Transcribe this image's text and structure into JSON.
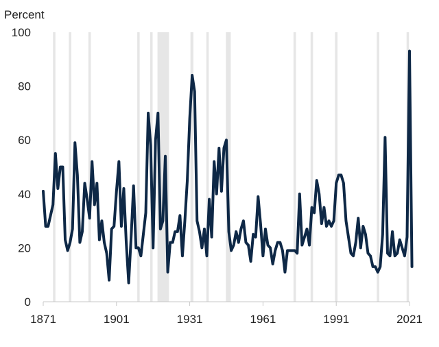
{
  "chart_data": {
    "type": "line",
    "title": "",
    "xlabel": "",
    "ylabel": "Percent",
    "xlim": [
      1871,
      2021
    ],
    "ylim": [
      0,
      100
    ],
    "x_ticks": [
      1871,
      1901,
      1931,
      1961,
      1991,
      2021
    ],
    "y_ticks": [
      0,
      20,
      40,
      60,
      80,
      100
    ],
    "grid": false,
    "legend": "none",
    "shaded_periods": [
      [
        1875.0,
        1876.0
      ],
      [
        1881.5,
        1882.5
      ],
      [
        1889.5,
        1890.5
      ],
      [
        1909.5,
        1910.5
      ],
      [
        1914.8,
        1915.8
      ],
      [
        1917.8,
        1922.5
      ],
      [
        1931.3,
        1932.5
      ],
      [
        1937.8,
        1938.8
      ],
      [
        1945.8,
        1947.8
      ],
      [
        1973.5,
        1974.5
      ],
      [
        1980.5,
        1981.5
      ],
      [
        1990.5,
        1991.5
      ],
      [
        2007.6,
        2008.6
      ],
      [
        2019.8,
        2020.8
      ]
    ],
    "series": [
      {
        "color": "#0e2846",
        "points": [
          [
            1871,
            41
          ],
          [
            1872,
            28
          ],
          [
            1873,
            28
          ],
          [
            1874,
            32
          ],
          [
            1875,
            36
          ],
          [
            1876,
            55
          ],
          [
            1877,
            42
          ],
          [
            1878,
            50
          ],
          [
            1879,
            50
          ],
          [
            1880,
            23
          ],
          [
            1881,
            19
          ],
          [
            1882,
            22
          ],
          [
            1883,
            27
          ],
          [
            1884,
            59
          ],
          [
            1885,
            47
          ],
          [
            1886,
            22
          ],
          [
            1887,
            26
          ],
          [
            1888,
            44
          ],
          [
            1889,
            38
          ],
          [
            1890,
            31
          ],
          [
            1891,
            52
          ],
          [
            1892,
            36
          ],
          [
            1893,
            44
          ],
          [
            1894,
            23
          ],
          [
            1895,
            30
          ],
          [
            1896,
            22
          ],
          [
            1897,
            18
          ],
          [
            1898,
            8
          ],
          [
            1899,
            27
          ],
          [
            1900,
            28
          ],
          [
            1901,
            41
          ],
          [
            1902,
            52
          ],
          [
            1903,
            28
          ],
          [
            1904,
            42
          ],
          [
            1905,
            22
          ],
          [
            1906,
            7
          ],
          [
            1907,
            24
          ],
          [
            1908,
            43
          ],
          [
            1909,
            20
          ],
          [
            1910,
            20
          ],
          [
            1911,
            17
          ],
          [
            1912,
            25
          ],
          [
            1913,
            33
          ],
          [
            1914,
            70
          ],
          [
            1915,
            58
          ],
          [
            1916,
            20
          ],
          [
            1917,
            60
          ],
          [
            1918,
            70
          ],
          [
            1919,
            27
          ],
          [
            1920,
            30
          ],
          [
            1921,
            54
          ],
          [
            1922,
            11
          ],
          [
            1923,
            22
          ],
          [
            1924,
            22
          ],
          [
            1925,
            26
          ],
          [
            1926,
            26
          ],
          [
            1927,
            32
          ],
          [
            1928,
            17
          ],
          [
            1929,
            30
          ],
          [
            1930,
            45
          ],
          [
            1931,
            68
          ],
          [
            1932,
            84
          ],
          [
            1933,
            78
          ],
          [
            1934,
            30
          ],
          [
            1935,
            26
          ],
          [
            1936,
            20
          ],
          [
            1937,
            27
          ],
          [
            1938,
            17
          ],
          [
            1939,
            38
          ],
          [
            1940,
            24
          ],
          [
            1941,
            52
          ],
          [
            1942,
            40
          ],
          [
            1943,
            57
          ],
          [
            1944,
            41
          ],
          [
            1945,
            57
          ],
          [
            1946,
            60
          ],
          [
            1947,
            26
          ],
          [
            1948,
            19
          ],
          [
            1949,
            21
          ],
          [
            1950,
            26
          ],
          [
            1951,
            22
          ],
          [
            1952,
            27
          ],
          [
            1953,
            30
          ],
          [
            1954,
            22
          ],
          [
            1955,
            21
          ],
          [
            1956,
            15
          ],
          [
            1957,
            25
          ],
          [
            1958,
            24
          ],
          [
            1959,
            39
          ],
          [
            1960,
            29
          ],
          [
            1961,
            17
          ],
          [
            1962,
            27
          ],
          [
            1963,
            21
          ],
          [
            1964,
            20
          ],
          [
            1965,
            14
          ],
          [
            1966,
            19
          ],
          [
            1967,
            22
          ],
          [
            1968,
            22
          ],
          [
            1969,
            19
          ],
          [
            1970,
            11
          ],
          [
            1971,
            19
          ],
          [
            1972,
            19
          ],
          [
            1973,
            19
          ],
          [
            1974,
            19
          ],
          [
            1975,
            18
          ],
          [
            1976,
            40
          ],
          [
            1977,
            21
          ],
          [
            1978,
            24
          ],
          [
            1979,
            27
          ],
          [
            1980,
            21
          ],
          [
            1981,
            35
          ],
          [
            1982,
            33
          ],
          [
            1983,
            45
          ],
          [
            1984,
            40
          ],
          [
            1985,
            29
          ],
          [
            1986,
            35
          ],
          [
            1987,
            28
          ],
          [
            1988,
            30
          ],
          [
            1989,
            28
          ],
          [
            1990,
            30
          ],
          [
            1991,
            44
          ],
          [
            1992,
            47
          ],
          [
            1993,
            47
          ],
          [
            1994,
            44
          ],
          [
            1995,
            30
          ],
          [
            1996,
            24
          ],
          [
            1997,
            18
          ],
          [
            1998,
            17
          ],
          [
            1999,
            22
          ],
          [
            2000,
            31
          ],
          [
            2001,
            20
          ],
          [
            2002,
            28
          ],
          [
            2003,
            25
          ],
          [
            2004,
            18
          ],
          [
            2005,
            17
          ],
          [
            2006,
            13
          ],
          [
            2007,
            13
          ],
          [
            2008,
            11
          ],
          [
            2009,
            13
          ],
          [
            2010,
            25
          ],
          [
            2011,
            61
          ],
          [
            2012,
            18
          ],
          [
            2013,
            17
          ],
          [
            2014,
            26
          ],
          [
            2015,
            17
          ],
          [
            2016,
            18
          ],
          [
            2017,
            23
          ],
          [
            2018,
            20
          ],
          [
            2019,
            17
          ],
          [
            2020,
            24
          ],
          [
            2021,
            93
          ],
          [
            2022,
            13
          ]
        ]
      }
    ]
  }
}
